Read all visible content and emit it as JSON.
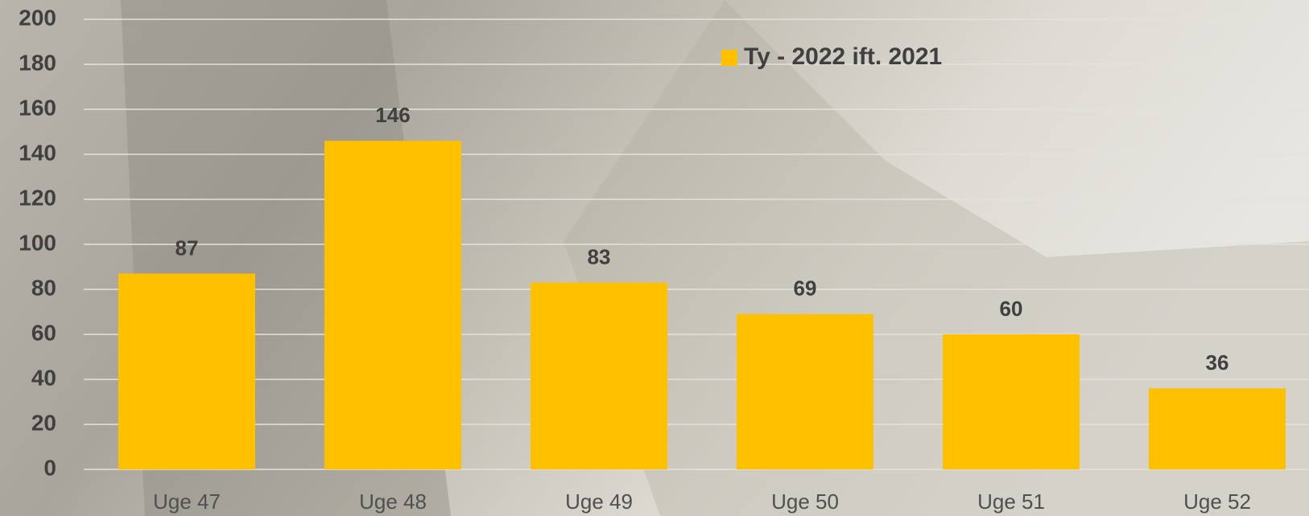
{
  "chart_data": {
    "type": "bar",
    "categories": [
      "Uge 47",
      "Uge 48",
      "Uge 49",
      "Uge 50",
      "Uge 51",
      "Uge 52"
    ],
    "series": [
      {
        "name": "Ty - 2022 ift. 2021",
        "color": "#ffc000",
        "values": [
          87,
          146,
          83,
          69,
          60,
          36
        ]
      }
    ],
    "ylim": [
      0,
      200
    ],
    "yticks": [
      0,
      20,
      40,
      60,
      80,
      100,
      120,
      140,
      160,
      180,
      200
    ],
    "grid": true
  }
}
